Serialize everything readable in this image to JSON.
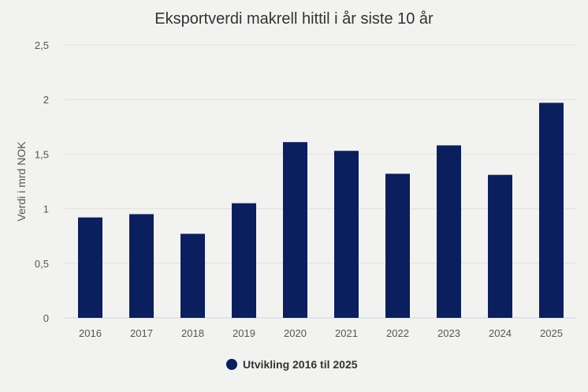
{
  "chart_data": {
    "type": "bar",
    "title": "Eksportverdi makrell hittil i år siste 10 år",
    "xlabel": "",
    "ylabel": "Verdi i mrd NOK",
    "categories": [
      "2016",
      "2017",
      "2018",
      "2019",
      "2020",
      "2021",
      "2022",
      "2023",
      "2024",
      "2025"
    ],
    "series": [
      {
        "name": "Utvikling 2016 til 2025",
        "values": [
          0.92,
          0.95,
          0.77,
          1.05,
          1.61,
          1.53,
          1.32,
          1.58,
          1.31,
          1.97
        ],
        "color": "#0b1f5e"
      }
    ],
    "ylim": [
      0,
      2.5
    ],
    "yticks": [
      0,
      0.5,
      1,
      1.5,
      2,
      2.5
    ],
    "ytick_labels": [
      "0",
      "0,5",
      "1",
      "1,5",
      "2",
      "2,5"
    ],
    "grid": true,
    "legend_position": "bottom-center"
  }
}
